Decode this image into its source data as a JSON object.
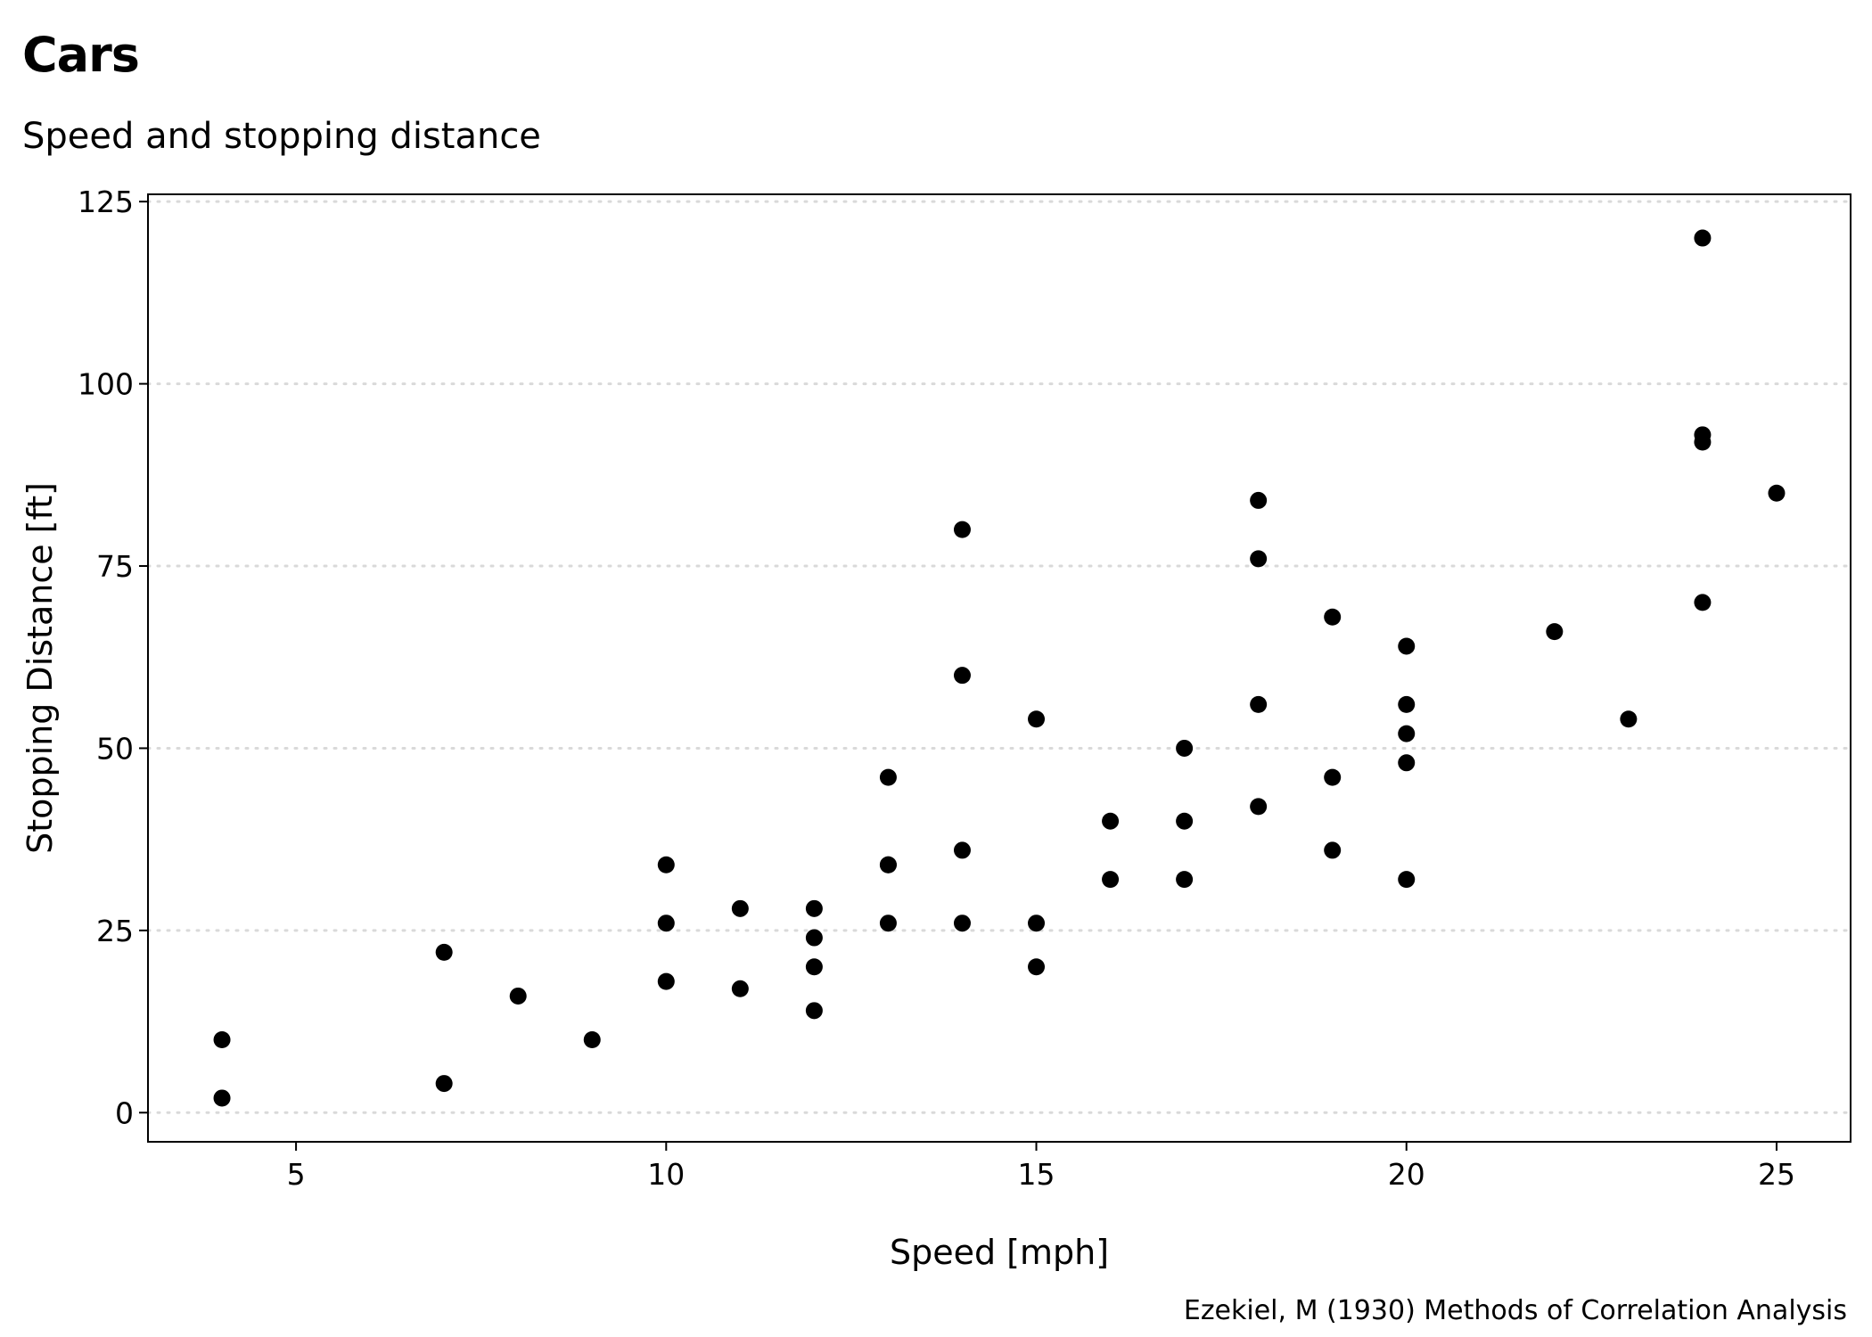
{
  "chart_data": {
    "type": "scatter",
    "title": "Cars",
    "subtitle": "Speed and stopping distance",
    "caption": "Ezekiel, M (1930) Methods of Correlation Analysis",
    "xlabel": "Speed [mph]",
    "ylabel": "Stopping Distance [ft]",
    "xlim": [
      3,
      26
    ],
    "ylim": [
      -4,
      126
    ],
    "xticks": [
      5,
      10,
      15,
      20,
      25
    ],
    "yticks": [
      0,
      25,
      50,
      75,
      100,
      125
    ],
    "grid": "horizontal, dotted",
    "legend": "none",
    "point_color": "#000000",
    "grid_color": "#d9d9d9",
    "points": [
      [
        4,
        2
      ],
      [
        4,
        10
      ],
      [
        7,
        4
      ],
      [
        7,
        22
      ],
      [
        8,
        16
      ],
      [
        9,
        10
      ],
      [
        10,
        18
      ],
      [
        10,
        26
      ],
      [
        10,
        34
      ],
      [
        11,
        17
      ],
      [
        11,
        28
      ],
      [
        12,
        14
      ],
      [
        12,
        20
      ],
      [
        12,
        24
      ],
      [
        12,
        28
      ],
      [
        13,
        26
      ],
      [
        13,
        34
      ],
      [
        13,
        34
      ],
      [
        13,
        46
      ],
      [
        14,
        26
      ],
      [
        14,
        36
      ],
      [
        14,
        60
      ],
      [
        14,
        80
      ],
      [
        15,
        20
      ],
      [
        15,
        26
      ],
      [
        15,
        54
      ],
      [
        16,
        32
      ],
      [
        16,
        40
      ],
      [
        17,
        32
      ],
      [
        17,
        40
      ],
      [
        17,
        50
      ],
      [
        18,
        42
      ],
      [
        18,
        56
      ],
      [
        18,
        76
      ],
      [
        18,
        84
      ],
      [
        19,
        36
      ],
      [
        19,
        46
      ],
      [
        19,
        68
      ],
      [
        20,
        32
      ],
      [
        20,
        48
      ],
      [
        20,
        52
      ],
      [
        20,
        56
      ],
      [
        20,
        64
      ],
      [
        22,
        66
      ],
      [
        23,
        54
      ],
      [
        24,
        70
      ],
      [
        24,
        92
      ],
      [
        24,
        93
      ],
      [
        24,
        120
      ],
      [
        25,
        85
      ]
    ]
  }
}
